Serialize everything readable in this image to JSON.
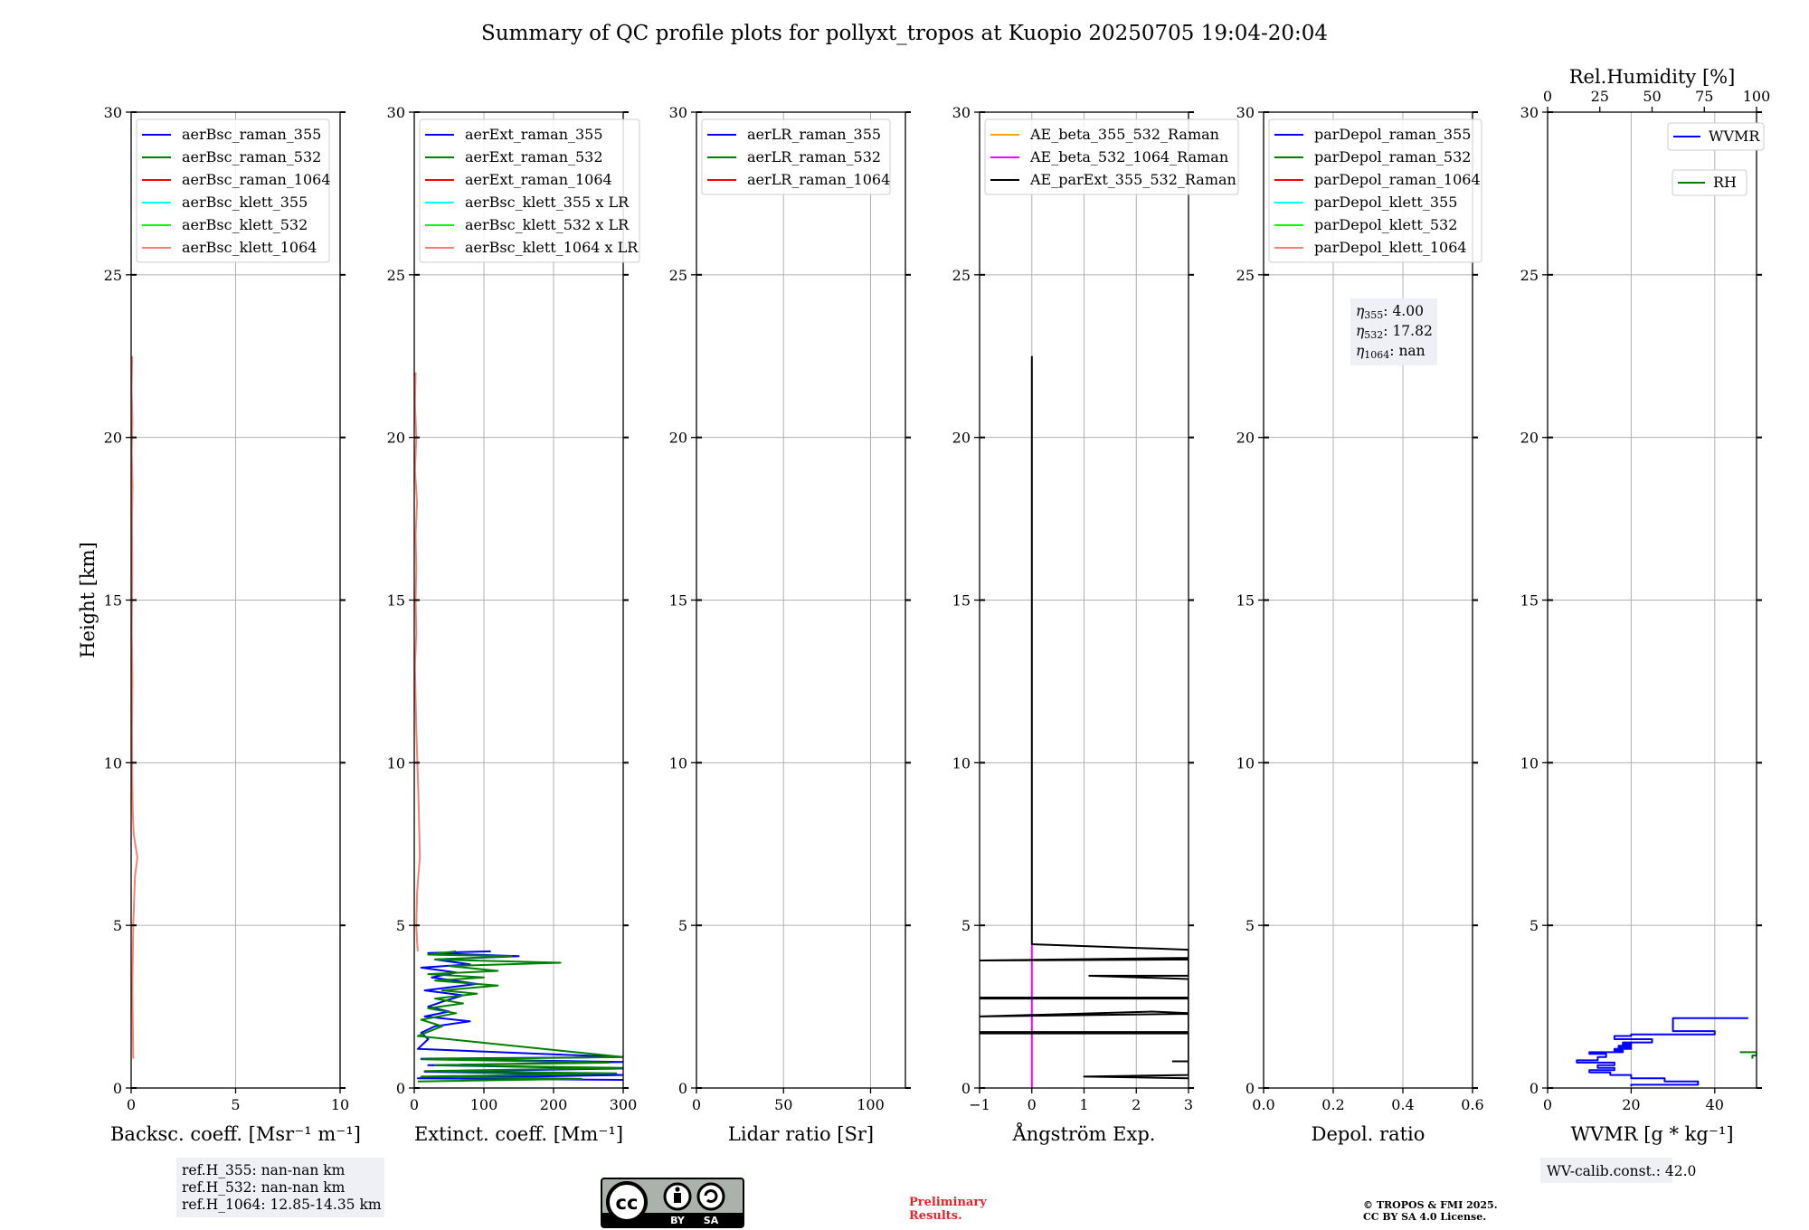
{
  "title": "Summary of QC profile plots for pollyxt_tropos at Kuopio 20250705 19:04-20:04",
  "colors": {
    "blue": "#0000ff",
    "green": "#008000",
    "red": "#ff0000",
    "cyan": "#00ffff",
    "lime": "#00ff00",
    "salmon": "#fa8072",
    "orange": "#ffa500",
    "magenta": "#ff00ff",
    "black": "#000000"
  },
  "chart_data": [
    {
      "type": "line",
      "id": "bsc",
      "xlabel": "Backsc. coeff. [Msr⁻¹ m⁻¹]",
      "ylabel": "Height [km]",
      "xlim": [
        0,
        10
      ],
      "ylim": [
        0,
        30
      ],
      "xticks": [
        "0",
        "5",
        "10"
      ],
      "xtick_values": [
        0,
        5,
        10
      ],
      "yticks": [
        "0",
        "5",
        "10",
        "15",
        "20",
        "25",
        "30"
      ],
      "ytick_values": [
        0,
        5,
        10,
        15,
        20,
        25,
        30
      ],
      "legend": [
        {
          "label": "aerBsc_raman_355",
          "color": "blue"
        },
        {
          "label": "aerBsc_raman_532",
          "color": "green"
        },
        {
          "label": "aerBsc_raman_1064",
          "color": "red"
        },
        {
          "label": "aerBsc_klett_355",
          "color": "cyan"
        },
        {
          "label": "aerBsc_klett_532",
          "color": "lime"
        },
        {
          "label": "aerBsc_klett_1064",
          "color": "salmon"
        }
      ],
      "series": [
        {
          "name": "aerBsc_klett_1064",
          "color": "salmon",
          "x": [
            0.05,
            0.02,
            0.06,
            0.03,
            0.07,
            0.04,
            0.05,
            0.03,
            0.06,
            0.04,
            0.05,
            0.08,
            0.12,
            0.3,
            0.18,
            0.1,
            0.08,
            0.06,
            0.08,
            0.1
          ],
          "y": [
            22.5,
            21.5,
            20.5,
            19.5,
            18.5,
            17.5,
            16,
            14,
            12.5,
            11,
            9.5,
            8.5,
            7.8,
            7.1,
            6.5,
            5,
            4,
            3,
            2,
            0.9
          ]
        }
      ]
    },
    {
      "type": "line",
      "id": "ext",
      "xlabel": "Extinct. coeff. [Mm⁻¹]",
      "xlim": [
        0,
        300
      ],
      "ylim": [
        0,
        30
      ],
      "xticks": [
        "0",
        "100",
        "200",
        "300"
      ],
      "xtick_values": [
        0,
        100,
        200,
        300
      ],
      "yticks": [
        "0",
        "5",
        "10",
        "15",
        "20",
        "25",
        "30"
      ],
      "ytick_values": [
        0,
        5,
        10,
        15,
        20,
        25,
        30
      ],
      "legend": [
        {
          "label": "aerExt_raman_355",
          "color": "blue"
        },
        {
          "label": "aerExt_raman_532",
          "color": "green"
        },
        {
          "label": "aerExt_raman_1064",
          "color": "red"
        },
        {
          "label": "aerBsc_klett_355 x LR",
          "color": "cyan"
        },
        {
          "label": "aerBsc_klett_532 x LR",
          "color": "lime"
        },
        {
          "label": "aerBsc_klett_1064 x LR",
          "color": "salmon"
        }
      ],
      "series": [
        {
          "name": "aerBsc_klett_1064 x LR",
          "color": "salmon",
          "x": [
            2,
            1,
            3,
            1,
            4,
            2,
            3,
            2,
            3,
            1,
            2,
            3,
            6,
            8,
            4,
            3,
            4,
            5
          ],
          "y": [
            22,
            21,
            20,
            19,
            18,
            17,
            16,
            15,
            14,
            13,
            12,
            11,
            9,
            7.1,
            6,
            5,
            4.5,
            4.2
          ]
        },
        {
          "name": "aerExt_raman_355",
          "color": "blue",
          "x": [
            110,
            20,
            150,
            30,
            80,
            10,
            60,
            25,
            90,
            15,
            70,
            40,
            20,
            50,
            15,
            80,
            30,
            10,
            20,
            5,
            300,
            10,
            300,
            20,
            300,
            15,
            300,
            5,
            300
          ],
          "y": [
            4.2,
            4.15,
            4.05,
            3.95,
            3.8,
            3.7,
            3.55,
            3.4,
            3.2,
            3.0,
            2.85,
            2.65,
            2.5,
            2.35,
            2.2,
            2.05,
            1.9,
            1.7,
            1.5,
            1.2,
            0.95,
            0.9,
            0.8,
            0.7,
            0.6,
            0.5,
            0.4,
            0.3,
            0.25
          ]
        },
        {
          "name": "aerExt_raman_532",
          "color": "green",
          "x": [
            60,
            20,
            140,
            30,
            210,
            50,
            120,
            20,
            100,
            30,
            120,
            40,
            90,
            30,
            70,
            20,
            60,
            10,
            40,
            5,
            300,
            10,
            280,
            30,
            300,
            15,
            290,
            10,
            240,
            5
          ],
          "y": [
            4.2,
            4.1,
            4.05,
            3.95,
            3.85,
            3.75,
            3.6,
            3.5,
            3.4,
            3.3,
            3.15,
            3.0,
            2.9,
            2.75,
            2.6,
            2.45,
            2.3,
            2.1,
            1.9,
            1.6,
            0.95,
            0.88,
            0.78,
            0.7,
            0.62,
            0.52,
            0.45,
            0.35,
            0.28,
            0.2
          ]
        }
      ]
    },
    {
      "type": "line",
      "id": "lr",
      "xlabel": "Lidar ratio [Sr]",
      "xlim": [
        0,
        120
      ],
      "ylim": [
        0,
        30
      ],
      "xticks": [
        "0",
        "50",
        "100"
      ],
      "xtick_values": [
        0,
        50,
        100
      ],
      "yticks": [
        "0",
        "5",
        "10",
        "15",
        "20",
        "25",
        "30"
      ],
      "ytick_values": [
        0,
        5,
        10,
        15,
        20,
        25,
        30
      ],
      "legend": [
        {
          "label": "aerLR_raman_355",
          "color": "blue"
        },
        {
          "label": "aerLR_raman_532",
          "color": "green"
        },
        {
          "label": "aerLR_raman_1064",
          "color": "red"
        }
      ],
      "series": []
    },
    {
      "type": "line",
      "id": "ae",
      "xlabel": "Ångström Exp.",
      "xlim": [
        -1,
        3
      ],
      "ylim": [
        0,
        30
      ],
      "xticks": [
        "−1",
        "0",
        "1",
        "2",
        "3"
      ],
      "xtick_values": [
        -1,
        0,
        1,
        2,
        3
      ],
      "yticks": [
        "0",
        "5",
        "10",
        "15",
        "20",
        "25",
        "30"
      ],
      "ytick_values": [
        0,
        5,
        10,
        15,
        20,
        25,
        30
      ],
      "legend": [
        {
          "label": "AE_beta_355_532_Raman",
          "color": "orange"
        },
        {
          "label": "AE_beta_532_1064_Raman",
          "color": "magenta"
        },
        {
          "label": "AE_parExt_355_532_Raman",
          "color": "black"
        }
      ],
      "series": [
        {
          "name": "AE_beta_532_1064_Raman",
          "color": "magenta",
          "x": [
            0,
            0
          ],
          "y": [
            0,
            4.4
          ]
        },
        {
          "name": "AE_parExt_355_532_Raman",
          "color": "black",
          "x": [
            0,
            0,
            0,
            3,
            3,
            -1,
            -1,
            3,
            3,
            1.1,
            3,
            3,
            -1,
            -1,
            3,
            3,
            -1,
            -1,
            2.3,
            3,
            3,
            -1,
            -1,
            3,
            3,
            2.7,
            3,
            3,
            1,
            3
          ],
          "y": [
            22.5,
            4.42,
            4.42,
            4.25,
            4.0,
            3.92,
            3.92,
            3.95,
            3.45,
            3.45,
            3.35,
            2.78,
            2.78,
            2.75,
            2.75,
            2.28,
            2.2,
            2.2,
            2.35,
            2.3,
            1.72,
            1.72,
            1.68,
            1.68,
            0.82,
            0.82,
            0.82,
            0.4,
            0.35,
            0.3
          ]
        }
      ]
    },
    {
      "type": "line",
      "id": "depol",
      "xlabel": "Depol. ratio",
      "xlim": [
        0,
        0.6
      ],
      "ylim": [
        0,
        30
      ],
      "xticks": [
        "0.0",
        "0.2",
        "0.4",
        "0.6"
      ],
      "xtick_values": [
        0,
        0.2,
        0.4,
        0.6
      ],
      "yticks": [
        "0",
        "5",
        "10",
        "15",
        "20",
        "25",
        "30"
      ],
      "ytick_values": [
        0,
        5,
        10,
        15,
        20,
        25,
        30
      ],
      "legend": [
        {
          "label": "parDepol_raman_355",
          "color": "blue"
        },
        {
          "label": "parDepol_raman_532",
          "color": "green"
        },
        {
          "label": "parDepol_raman_1064",
          "color": "red"
        },
        {
          "label": "parDepol_klett_355",
          "color": "cyan"
        },
        {
          "label": "parDepol_klett_532",
          "color": "lime"
        },
        {
          "label": "parDepol_klett_1064",
          "color": "salmon"
        }
      ],
      "series": []
    },
    {
      "type": "line",
      "id": "wv",
      "xlabel": "WVMR [g * kg⁻¹]",
      "x2label": "Rel.Humidity [%]",
      "xlim": [
        0,
        50
      ],
      "ylim": [
        0,
        30
      ],
      "x2lim": [
        0,
        100
      ],
      "xticks": [
        "0",
        "20",
        "40"
      ],
      "xtick_values": [
        0,
        20,
        40
      ],
      "x2ticks": [
        "0",
        "25",
        "50",
        "75",
        "100"
      ],
      "x2tick_values": [
        0,
        25,
        50,
        75,
        100
      ],
      "yticks": [
        "0",
        "5",
        "10",
        "15",
        "20",
        "25",
        "30"
      ],
      "ytick_values": [
        0,
        5,
        10,
        15,
        20,
        25,
        30
      ],
      "legend": [
        {
          "label": "WVMR",
          "color": "blue"
        },
        {
          "label": "RH",
          "color": "green"
        }
      ],
      "series": [
        {
          "name": "WVMR",
          "color": "blue",
          "x": [
            48,
            30,
            30,
            40,
            40,
            20,
            20,
            16,
            16,
            25,
            25,
            18,
            18,
            20,
            20,
            17,
            17,
            20,
            20,
            16,
            16,
            18,
            18,
            10,
            10,
            14,
            14,
            12,
            12,
            7,
            7,
            16,
            16,
            12,
            12,
            16,
            16,
            10,
            10,
            15,
            15,
            20,
            20,
            28,
            28,
            36,
            36,
            20,
            20
          ],
          "y": [
            2.15,
            2.15,
            1.75,
            1.75,
            1.65,
            1.65,
            1.6,
            1.6,
            1.5,
            1.5,
            1.4,
            1.4,
            1.35,
            1.35,
            1.3,
            1.3,
            1.25,
            1.25,
            1.2,
            1.2,
            1.15,
            1.15,
            1.1,
            1.1,
            1.05,
            1.05,
            0.95,
            0.95,
            0.85,
            0.85,
            0.78,
            0.78,
            0.7,
            0.7,
            0.62,
            0.62,
            0.55,
            0.55,
            0.48,
            0.48,
            0.4,
            0.4,
            0.3,
            0.3,
            0.2,
            0.2,
            0.1,
            0.1,
            0.05
          ]
        },
        {
          "name": "RH",
          "color": "green",
          "x2": [
            92,
            100,
            100,
            98,
            98
          ],
          "y": [
            1.1,
            1.1,
            1.0,
            1.0,
            0.9
          ]
        }
      ]
    }
  ],
  "info_boxes": {
    "ref_h_355": "ref.H_355: nan-nan km",
    "ref_h_532": "ref.H_532: nan-nan km",
    "ref_h_1064": "ref.H_1064: 12.85-14.35 km",
    "eta_355_label": "η",
    "eta_355_sub": "355",
    "eta_355_val": ": 4.00",
    "eta_532_label": "η",
    "eta_532_sub": "532",
    "eta_532_val": ": 17.82",
    "eta_1064_label": "η",
    "eta_1064_sub": "1064",
    "eta_1064_val": ": nan",
    "wv_calib": "WV-calib.const.: 42.0"
  },
  "footer": {
    "preliminary_1": "Preliminary",
    "preliminary_2": "Results.",
    "copyright_1": "© TROPOS & FMI 2025.",
    "copyright_2": "CC BY SA 4.0 License.",
    "license_cc": "cc",
    "license_by": "BY",
    "license_sa": "SA"
  }
}
